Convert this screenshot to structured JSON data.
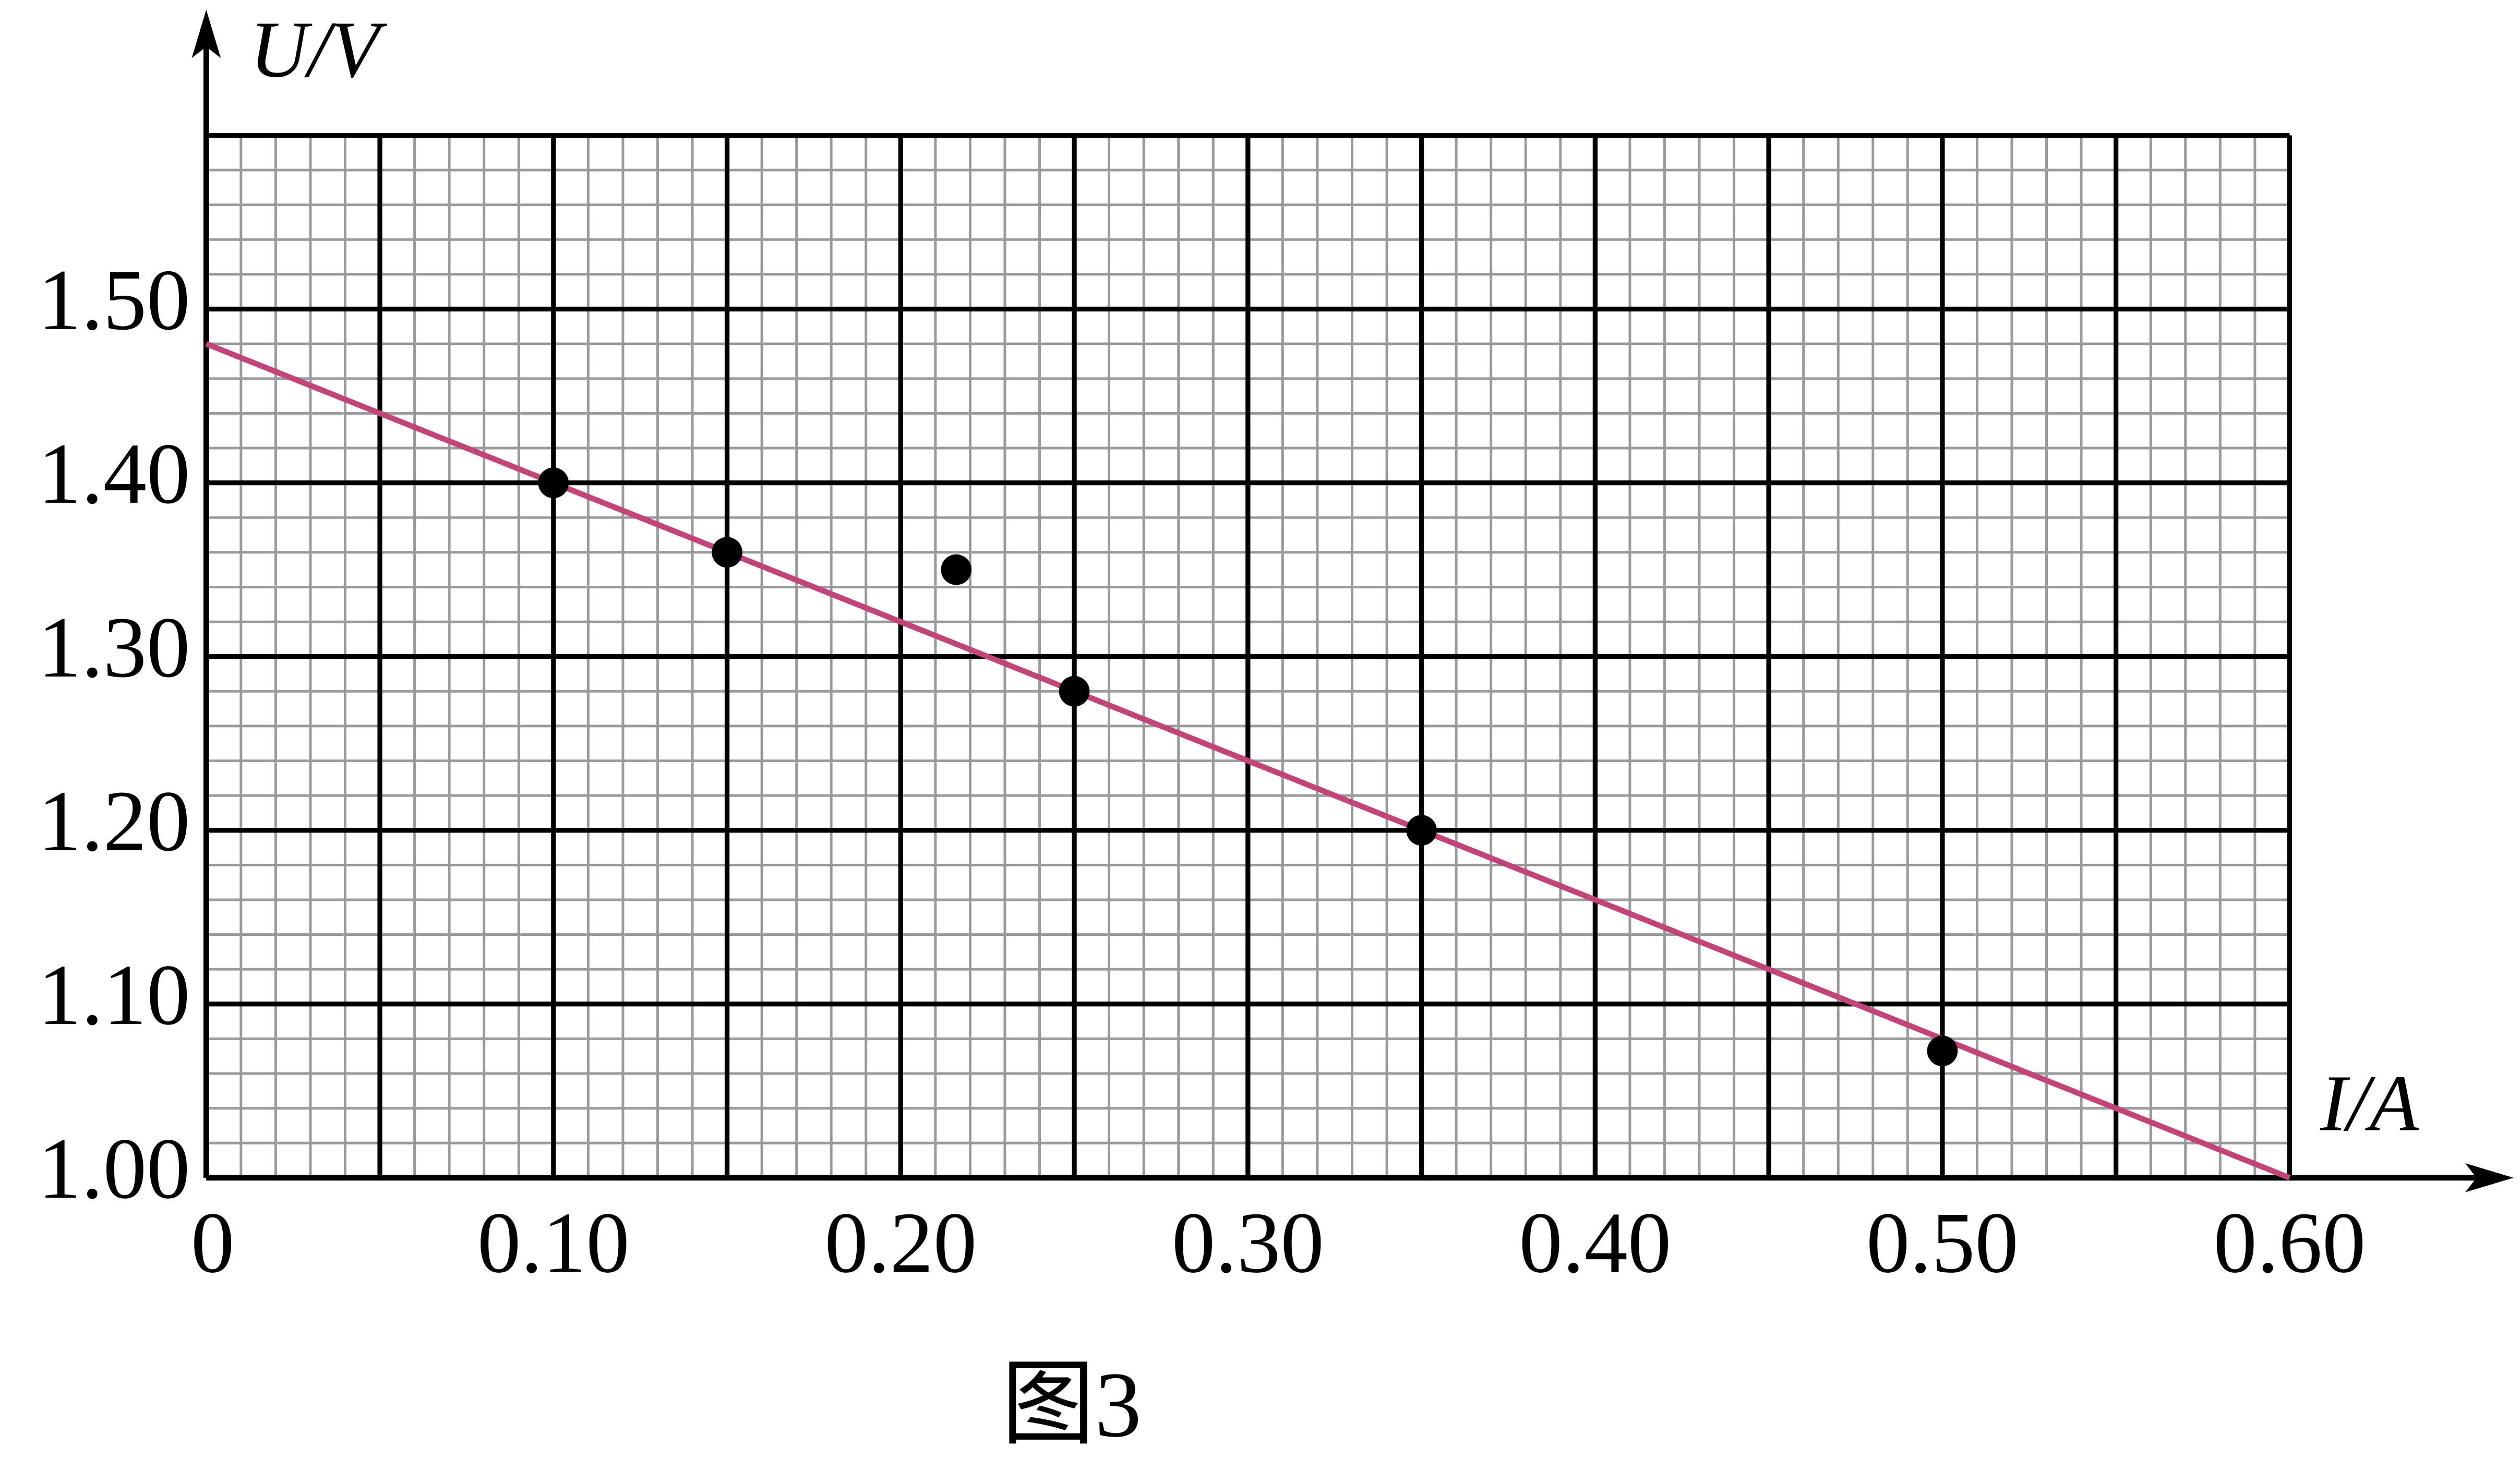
{
  "chart_data": {
    "type": "scatter",
    "caption": "图3",
    "y_label": "U/V",
    "x_label": "I/A",
    "x": [
      0.1,
      0.15,
      0.216,
      0.25,
      0.35,
      0.5
    ],
    "values": [
      1.4,
      1.36,
      1.35,
      1.28,
      1.2,
      1.073
    ],
    "color": "#000000",
    "fit_line": {
      "x": [
        0,
        0.6
      ],
      "values": [
        1.48,
        1.0
      ],
      "color": "#c2457a"
    },
    "xlim": [
      0,
      0.6
    ],
    "ylim": [
      1.0,
      1.6
    ],
    "xticks": [
      0,
      {
        "value": 0.1,
        "label": "0.10"
      },
      {
        "value": 0.2,
        "label": "0.20"
      },
      {
        "value": 0.3,
        "label": "0.30"
      },
      {
        "value": 0.4,
        "label": "0.40"
      },
      {
        "value": 0.5,
        "label": "0.50"
      },
      {
        "value": 0.6,
        "label": "0.60"
      }
    ],
    "yticks": [
      {
        "value": 1.0,
        "label": "1.00"
      },
      {
        "value": 1.1,
        "label": "1.10"
      },
      {
        "value": 1.2,
        "label": "1.20"
      },
      {
        "value": 1.3,
        "label": "1.30"
      },
      {
        "value": 1.4,
        "label": "1.40"
      },
      {
        "value": 1.5,
        "label": "1.50"
      }
    ],
    "grid": true
  }
}
